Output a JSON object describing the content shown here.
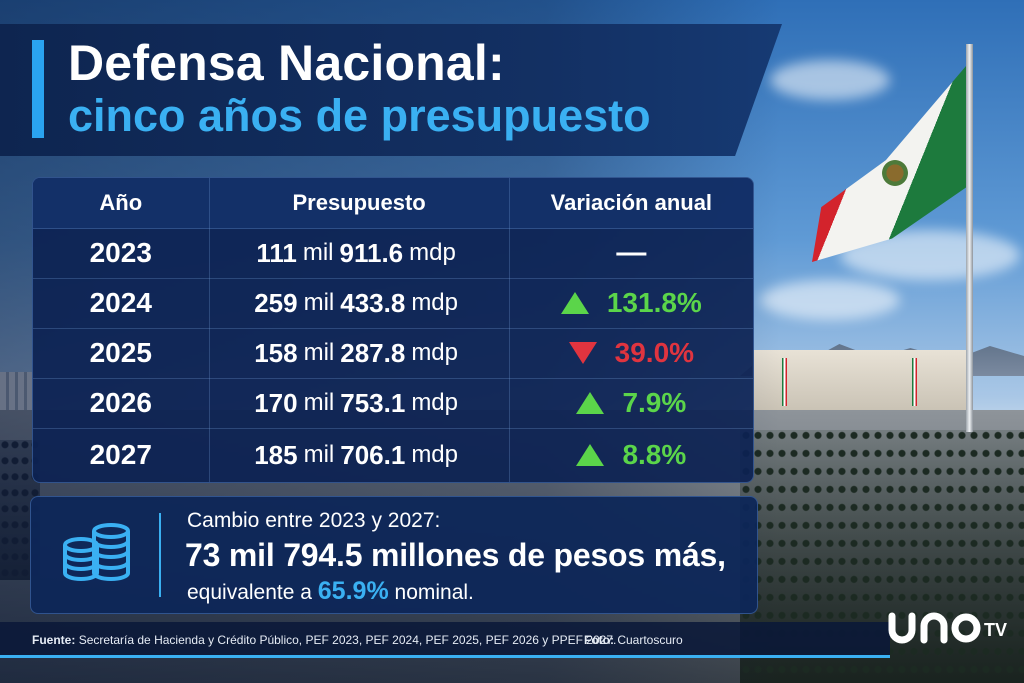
{
  "title": {
    "line1": "Defensa Nacional:",
    "line2": "cinco años de presupuesto"
  },
  "table": {
    "headers": [
      "Año",
      "Presupuesto",
      "Variación anual"
    ],
    "rows": [
      {
        "year": "2023",
        "budget_a": "111",
        "budget_mil": "mil",
        "budget_b": "911.6",
        "unit": "mdp",
        "direction": "none",
        "variation": "—"
      },
      {
        "year": "2024",
        "budget_a": "259",
        "budget_mil": "mil",
        "budget_b": "433.8",
        "unit": "mdp",
        "direction": "up",
        "variation": "131.8%"
      },
      {
        "year": "2025",
        "budget_a": "158",
        "budget_mil": "mil",
        "budget_b": "287.8",
        "unit": "mdp",
        "direction": "down",
        "variation": "39.0%"
      },
      {
        "year": "2026",
        "budget_a": "170",
        "budget_mil": "mil",
        "budget_b": "753.1",
        "unit": "mdp",
        "direction": "up",
        "variation": "7.9%"
      },
      {
        "year": "2027",
        "budget_a": "185",
        "budget_mil": "mil",
        "budget_b": "706.1",
        "unit": "mdp",
        "direction": "up",
        "variation": "8.8%"
      }
    ]
  },
  "summary": {
    "line1": "Cambio entre 2023 y 2027:",
    "line2": "73 mil 794.5 millones de pesos más,",
    "line3_prefix": "equivalente a",
    "line3_pct": "65.9%",
    "line3_suffix": "nominal."
  },
  "footer": {
    "source_label": "Fuente:",
    "source_text": "Secretaría de Hacienda y Crédito Público, PEF 2023, PEF 2024, PEF 2025, PEF 2026 y PPEF 2027.",
    "photo_label": "Foto:",
    "photo_text": "Cuartoscuro"
  },
  "logo": {
    "text": "unoTV"
  },
  "colors": {
    "accent_blue": "#3ab0f2",
    "increase_green": "#5bd54a",
    "decrease_red": "#e0343f",
    "navy": "#0e2550"
  }
}
